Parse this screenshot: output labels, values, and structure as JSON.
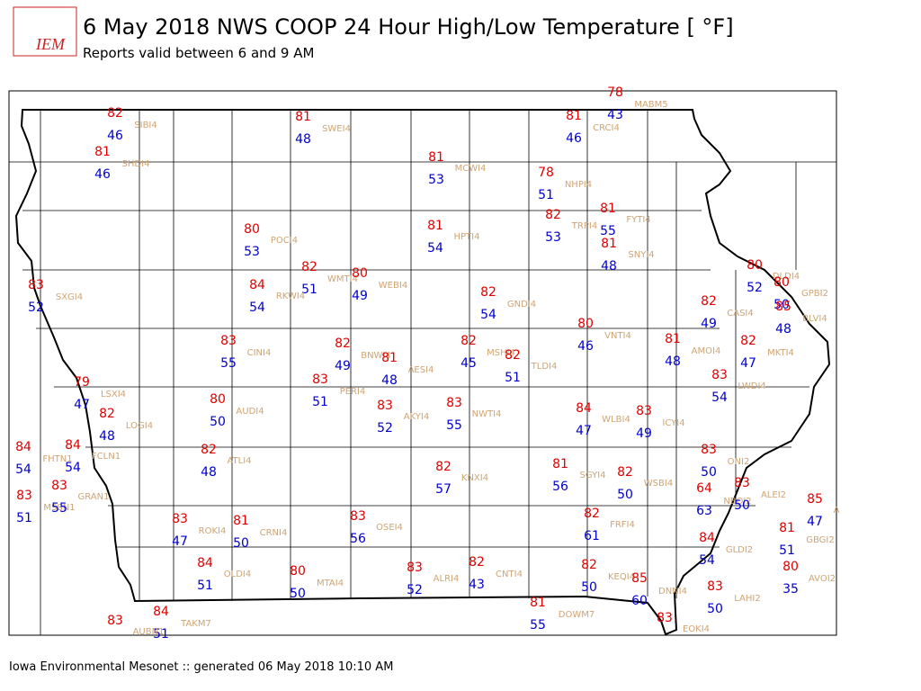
{
  "logo": {
    "text": "IEM"
  },
  "header": {
    "title": "6 May 2018 NWS COOP 24 Hour High/Low Temperature [ °F]",
    "subtitle": "Reports valid between 6 and 9 AM"
  },
  "footer": "Iowa Environmental Mesonet :: generated 06 May 2018 10:10 AM",
  "stations": [
    {
      "id": "SIBI4",
      "high": 82,
      "low": 46
    },
    {
      "id": "SHDI4",
      "high": 81,
      "low": 46
    },
    {
      "id": "SWEI4",
      "high": 81,
      "low": 48
    },
    {
      "id": "MABM5",
      "high": 78,
      "low": 43
    },
    {
      "id": "CRCI4",
      "high": 81,
      "low": 46
    },
    {
      "id": "MCWI4",
      "high": 81,
      "low": 53
    },
    {
      "id": "NHPI4",
      "high": 78,
      "low": 51
    },
    {
      "id": "FYTI4",
      "high": 81,
      "low": 55
    },
    {
      "id": "TRPI4",
      "high": 82,
      "low": 53
    },
    {
      "id": "HPTI4",
      "high": 81,
      "low": 54
    },
    {
      "id": "POCI4",
      "high": 80,
      "low": 53
    },
    {
      "id": "SNYI4",
      "high": 81,
      "low": 48
    },
    {
      "id": "DLDI4",
      "high": 80,
      "low": 52
    },
    {
      "id": "GPBI2",
      "high": 80,
      "low": 50
    },
    {
      "id": "BLVI4",
      "high": 85,
      "low": 48
    },
    {
      "id": "SXGI4",
      "high": 83,
      "low": 52
    },
    {
      "id": "WMTI4",
      "high": 82,
      "low": 51
    },
    {
      "id": "WEBI4",
      "high": 80,
      "low": 49
    },
    {
      "id": "RKWI4",
      "high": 84,
      "low": 54
    },
    {
      "id": "GNDI4",
      "high": 82,
      "low": 54
    },
    {
      "id": "CASI4",
      "high": 82,
      "low": 49
    },
    {
      "id": "VNTI4",
      "high": 80,
      "low": 46
    },
    {
      "id": "AMOI4",
      "high": 81,
      "low": 48
    },
    {
      "id": "MKTI4",
      "high": 82,
      "low": 47
    },
    {
      "id": "CINI4",
      "high": 83,
      "low": 55
    },
    {
      "id": "BNWI4",
      "high": 82,
      "low": 49
    },
    {
      "id": "MSHI4",
      "high": 82,
      "low": 45
    },
    {
      "id": "AESI4",
      "high": 81,
      "low": 48
    },
    {
      "id": "TLDI4",
      "high": 82,
      "low": 51
    },
    {
      "id": "LSXI4",
      "high": 79,
      "low": 47
    },
    {
      "id": "LWDI4",
      "high": 83,
      "low": 54
    },
    {
      "id": "PERI4",
      "high": 83,
      "low": 51
    },
    {
      "id": "AUDI4",
      "high": 80,
      "low": 50
    },
    {
      "id": "LOGI4",
      "high": 82,
      "low": 48
    },
    {
      "id": "AKYI4",
      "high": 83,
      "low": 52
    },
    {
      "id": "NWTI4",
      "high": 83,
      "low": 55
    },
    {
      "id": "WLBI4",
      "high": 84,
      "low": 47
    },
    {
      "id": "ICYI4",
      "high": 83,
      "low": 49
    },
    {
      "id": "FHTN1",
      "high": 84,
      "low": 54
    },
    {
      "id": "FCLN1",
      "high": 84,
      "low": 54
    },
    {
      "id": "ATLI4",
      "high": 82,
      "low": 48
    },
    {
      "id": "KNXI4",
      "high": 82,
      "low": 57
    },
    {
      "id": "SGYI4",
      "high": 81,
      "low": 56
    },
    {
      "id": "WSBI4",
      "high": 82,
      "low": 50
    },
    {
      "id": "ONI2",
      "high": 83,
      "low": 50
    },
    {
      "id": "MSSN1",
      "high": 83,
      "low": 51
    },
    {
      "id": "GRAN1",
      "high": 83,
      "low": 55
    },
    {
      "id": "NBOI2",
      "high": 64,
      "low": 63
    },
    {
      "id": "ALEI2",
      "high": 83,
      "low": 50
    },
    {
      "id": "ROKI4",
      "high": 83,
      "low": 47
    },
    {
      "id": "CRNI4",
      "high": 81,
      "low": 50
    },
    {
      "id": "OSEI4",
      "high": 83,
      "low": 56
    },
    {
      "id": "FRFI4",
      "high": 82,
      "low": 61
    },
    {
      "id": "A",
      "high": 85,
      "low": 47
    },
    {
      "id": "GBGI2",
      "high": 81,
      "low": 51
    },
    {
      "id": "GLDI2",
      "high": 84,
      "low": 54
    },
    {
      "id": "OLDI4",
      "high": 84,
      "low": 51
    },
    {
      "id": "MTAI4",
      "high": 80,
      "low": 50
    },
    {
      "id": "ALRI4",
      "high": 83,
      "low": 52
    },
    {
      "id": "CNTI4",
      "high": 82,
      "low": 43
    },
    {
      "id": "KEQI4",
      "high": 82,
      "low": 50
    },
    {
      "id": "AVOI2",
      "high": 80,
      "low": 35
    },
    {
      "id": "DNNI4",
      "high": 85,
      "low": 60
    },
    {
      "id": "LAHI2",
      "high": 83,
      "low": 50
    },
    {
      "id": "DOWM7",
      "high": 81,
      "low": 55
    },
    {
      "id": "TAKM7",
      "high": 84,
      "low": 51
    },
    {
      "id": "AUBN1",
      "high": 83
    },
    {
      "id": "EOKI4",
      "high": 83
    }
  ]
}
